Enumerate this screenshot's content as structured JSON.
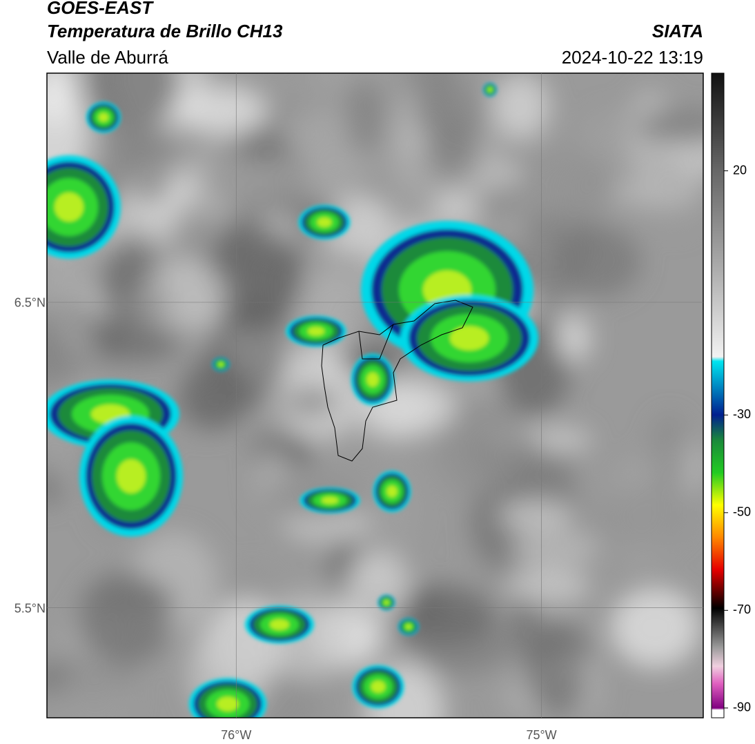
{
  "header": {
    "title": "GOES-EAST",
    "subtitle": "Temperatura de Brillo CH13",
    "region": "Valle de Aburrá",
    "source": "SIATA",
    "timestamp": "2024-10-22 13:19"
  },
  "map": {
    "xlim": [
      -76.62,
      -74.47
    ],
    "ylim": [
      5.14,
      7.25
    ],
    "xticks": [
      {
        "value": -76,
        "label": "76°W"
      },
      {
        "value": -75,
        "label": "75°W"
      }
    ],
    "yticks": [
      {
        "value": 5.5,
        "label": "5.5°N"
      },
      {
        "value": 6.5,
        "label": "6.5°N"
      }
    ],
    "grid": true
  },
  "colorbar": {
    "lim": [
      -92,
      40
    ],
    "ticks": [
      -90,
      -70,
      -50,
      -30,
      20
    ]
  }
}
